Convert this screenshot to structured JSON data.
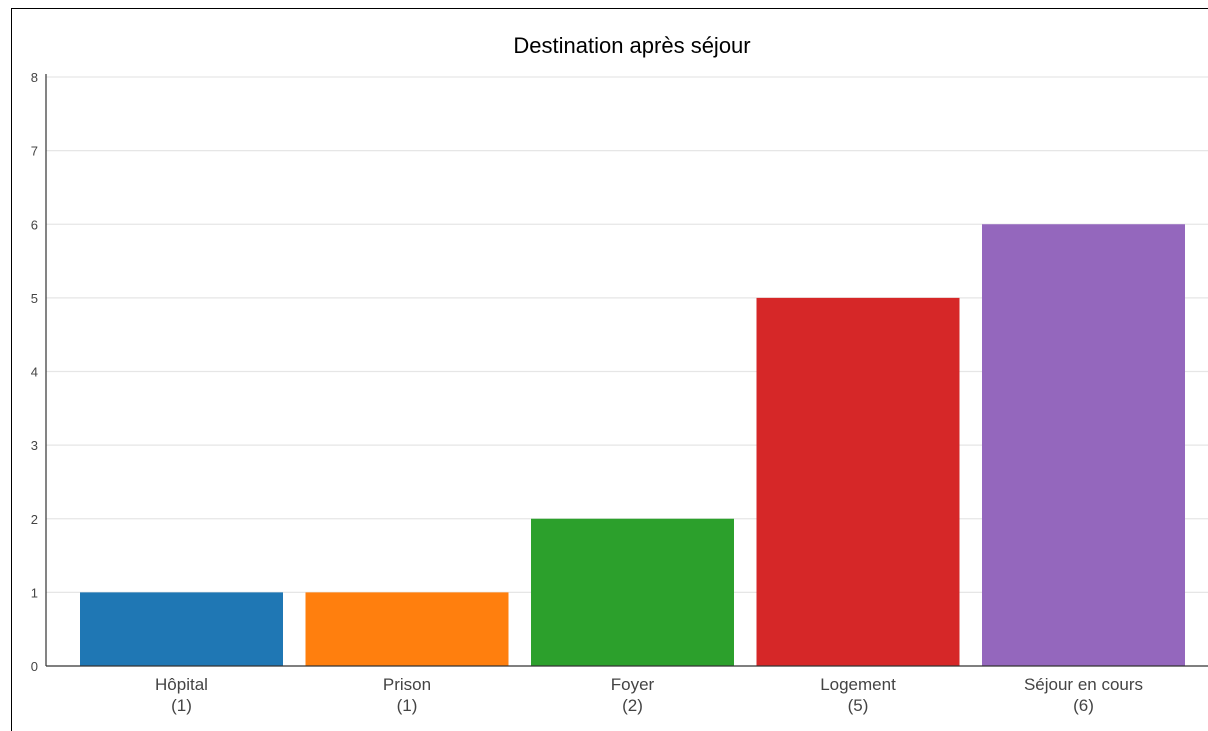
{
  "chart_data": {
    "type": "bar",
    "title": "Destination après séjour",
    "xlabel": "",
    "ylabel": "",
    "categories": [
      "Hôpital",
      "Prison",
      "Foyer",
      "Logement",
      "Séjour en cours"
    ],
    "category_counts": [
      "(1)",
      "(1)",
      "(2)",
      "(5)",
      "(6)"
    ],
    "values": [
      1,
      1,
      2,
      5,
      6
    ],
    "colors": [
      "#1f77b4",
      "#ff7f0e",
      "#2ca02c",
      "#d62728",
      "#9467bd"
    ],
    "ylim": [
      0,
      8
    ],
    "yticks": [
      "0",
      "1",
      "2",
      "3",
      "4",
      "5",
      "6",
      "7",
      "8"
    ],
    "grid": true,
    "legend": "none"
  }
}
